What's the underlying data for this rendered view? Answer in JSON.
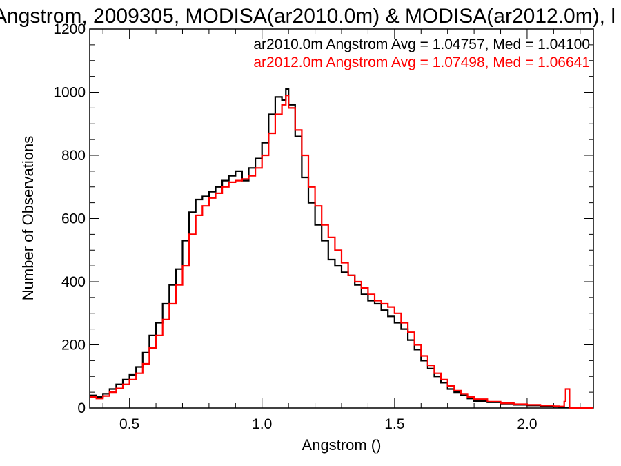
{
  "chart_data": {
    "type": "line",
    "title": "Angstrom, 2009305, MODISA(ar2010.0m) & MODISA(ar2012.0m), l",
    "xlabel": "Angstrom ()",
    "ylabel": "Number of Observations",
    "xlim": [
      0.35,
      2.25
    ],
    "ylim": [
      0,
      1200
    ],
    "xticks": [
      0.5,
      1.0,
      1.5,
      2.0
    ],
    "xtick_labels": [
      "0.5",
      "1.0",
      "1.5",
      "2.0"
    ],
    "yticks": [
      0,
      200,
      400,
      600,
      800,
      1000,
      1200
    ],
    "ytick_labels": [
      "0",
      "200",
      "400",
      "600",
      "800",
      "1000",
      "1200"
    ],
    "grid": false,
    "legend_position": "top-right",
    "step": true,
    "series": [
      {
        "name": "ar2010.0m Angstrom Avg = 1.04757, Med = 1.04100",
        "color": "#000000",
        "x": [
          0.35,
          0.375,
          0.4,
          0.425,
          0.45,
          0.475,
          0.5,
          0.525,
          0.55,
          0.575,
          0.6,
          0.625,
          0.65,
          0.675,
          0.7,
          0.725,
          0.75,
          0.775,
          0.8,
          0.825,
          0.85,
          0.875,
          0.9,
          0.925,
          0.95,
          0.975,
          1.0,
          1.025,
          1.05,
          1.075,
          1.09,
          1.1,
          1.125,
          1.15,
          1.175,
          1.2,
          1.225,
          1.25,
          1.275,
          1.3,
          1.325,
          1.35,
          1.375,
          1.4,
          1.425,
          1.45,
          1.475,
          1.5,
          1.525,
          1.55,
          1.575,
          1.6,
          1.625,
          1.65,
          1.675,
          1.7,
          1.725,
          1.75,
          1.775,
          1.8,
          1.85,
          1.9,
          1.95,
          2.0,
          2.05,
          2.1,
          2.12,
          2.14,
          2.145,
          2.16,
          2.25
        ],
        "values": [
          40,
          35,
          45,
          60,
          75,
          90,
          105,
          130,
          175,
          230,
          270,
          330,
          390,
          440,
          530,
          620,
          660,
          670,
          685,
          700,
          720,
          735,
          750,
          720,
          760,
          790,
          840,
          930,
          985,
          975,
          1010,
          960,
          860,
          730,
          650,
          580,
          530,
          470,
          450,
          430,
          420,
          390,
          360,
          340,
          330,
          310,
          290,
          270,
          250,
          215,
          185,
          150,
          125,
          100,
          80,
          60,
          50,
          40,
          30,
          22,
          18,
          14,
          10,
          8,
          5,
          4,
          3,
          2,
          2,
          0,
          0
        ]
      },
      {
        "name": "ar2012.0m Angstrom Avg = 1.07498, Med = 1.06641",
        "color": "#ff0000",
        "x": [
          0.35,
          0.375,
          0.4,
          0.425,
          0.45,
          0.475,
          0.5,
          0.525,
          0.55,
          0.575,
          0.6,
          0.625,
          0.65,
          0.675,
          0.7,
          0.725,
          0.75,
          0.775,
          0.8,
          0.825,
          0.85,
          0.875,
          0.9,
          0.925,
          0.95,
          0.975,
          1.0,
          1.025,
          1.05,
          1.075,
          1.09,
          1.1,
          1.125,
          1.15,
          1.175,
          1.2,
          1.225,
          1.25,
          1.275,
          1.3,
          1.325,
          1.35,
          1.375,
          1.4,
          1.425,
          1.45,
          1.475,
          1.5,
          1.525,
          1.55,
          1.575,
          1.6,
          1.625,
          1.65,
          1.675,
          1.7,
          1.725,
          1.75,
          1.775,
          1.8,
          1.85,
          1.9,
          1.95,
          2.0,
          2.05,
          2.1,
          2.12,
          2.14,
          2.145,
          2.16,
          2.25
        ],
        "values": [
          35,
          30,
          38,
          50,
          62,
          75,
          90,
          110,
          140,
          190,
          230,
          280,
          330,
          390,
          450,
          550,
          610,
          640,
          665,
          680,
          700,
          715,
          720,
          725,
          735,
          760,
          800,
          870,
          930,
          960,
          990,
          950,
          880,
          800,
          700,
          640,
          580,
          540,
          500,
          460,
          420,
          400,
          380,
          360,
          340,
          330,
          320,
          300,
          270,
          240,
          200,
          165,
          135,
          110,
          90,
          70,
          55,
          45,
          35,
          28,
          20,
          15,
          12,
          10,
          8,
          6,
          5,
          20,
          60,
          0,
          0
        ]
      }
    ]
  }
}
